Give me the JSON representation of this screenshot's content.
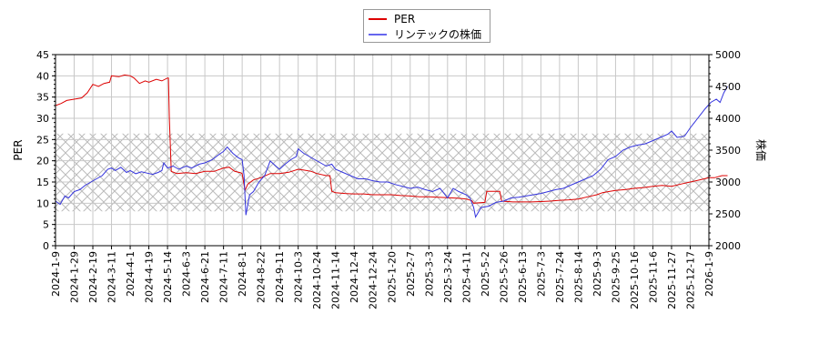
{
  "chart_data": {
    "type": "line",
    "title": "",
    "legend": {
      "position": "top-center",
      "entries": [
        {
          "label": "PER",
          "color": "#dd0000"
        },
        {
          "label": "リンテックの株価",
          "color": "#3333dd"
        }
      ]
    },
    "xlabel": "",
    "ylabel_left": "PER",
    "ylabel_right": "株価",
    "ylim_left": [
      0,
      45
    ],
    "ylim_right": [
      2000,
      5000
    ],
    "yticks_left": [
      0,
      5,
      10,
      15,
      20,
      25,
      30,
      35,
      40,
      45
    ],
    "yticks_right": [
      2000,
      2500,
      3000,
      3500,
      4000,
      4500,
      5000
    ],
    "grid": true,
    "hatched_band_per": [
      8.1,
      26.4
    ],
    "x_tick_labels": [
      "2024-1-9",
      "2024-1-29",
      "2024-2-19",
      "2024-3-11",
      "2024-4-1",
      "2024-4-19",
      "2024-5-14",
      "2024-6-3",
      "2024-6-21",
      "2024-7-11",
      "2024-8-1",
      "2024-8-22",
      "2024-9-11",
      "2024-10-3",
      "2024-10-24",
      "2024-11-14",
      "2024-12-4",
      "2024-12-24",
      "2025-1-20",
      "2025-2-7",
      "2025-3-3",
      "2025-3-24",
      "2025-4-11",
      "2025-5-2",
      "2025-5-26",
      "2025-6-13",
      "2025-7-3",
      "2025-7-24",
      "2025-8-14",
      "2025-9-3",
      "2025-9-25",
      "2025-10-16",
      "2025-11-6",
      "2025-11-27",
      "2025-12-17",
      "2026-1-9"
    ],
    "series": [
      {
        "name": "PER",
        "axis": "left",
        "color": "#dd0000",
        "points_tick_index_value": [
          [
            0,
            33
          ],
          [
            0.3,
            33.5
          ],
          [
            0.6,
            34.2
          ],
          [
            1,
            34.5
          ],
          [
            1.4,
            34.8
          ],
          [
            1.7,
            36
          ],
          [
            2,
            38
          ],
          [
            2.3,
            37.5
          ],
          [
            2.6,
            38.2
          ],
          [
            2.9,
            38.5
          ],
          [
            3,
            40
          ],
          [
            3.4,
            39.8
          ],
          [
            3.7,
            40.2
          ],
          [
            4,
            40
          ],
          [
            4.2,
            39.5
          ],
          [
            4.5,
            38.2
          ],
          [
            4.8,
            38.8
          ],
          [
            5,
            38.5
          ],
          [
            5.4,
            39.2
          ],
          [
            5.7,
            38.8
          ],
          [
            6,
            39.5
          ],
          [
            6.05,
            39.5
          ],
          [
            6.1,
            30
          ],
          [
            6.2,
            17.5
          ],
          [
            6.5,
            17
          ],
          [
            7,
            17.2
          ],
          [
            7.5,
            17
          ],
          [
            8,
            17.5
          ],
          [
            8.5,
            17.5
          ],
          [
            9,
            18.3
          ],
          [
            9.3,
            18.5
          ],
          [
            9.6,
            17.5
          ],
          [
            9.9,
            17.2
          ],
          [
            10,
            17
          ],
          [
            10.15,
            13
          ],
          [
            10.3,
            14.5
          ],
          [
            10.6,
            15.5
          ],
          [
            11,
            16
          ],
          [
            11.5,
            17
          ],
          [
            12,
            17
          ],
          [
            12.5,
            17.3
          ],
          [
            13,
            18
          ],
          [
            13.3,
            17.8
          ],
          [
            13.7,
            17.5
          ],
          [
            14,
            17
          ],
          [
            14.5,
            16.5
          ],
          [
            14.7,
            16.5
          ],
          [
            14.8,
            12.8
          ],
          [
            15,
            12.5
          ],
          [
            15.5,
            12.3
          ],
          [
            16,
            12.2
          ],
          [
            16.5,
            12.2
          ],
          [
            17,
            12
          ],
          [
            17.5,
            12
          ],
          [
            18,
            12
          ],
          [
            18.5,
            11.8
          ],
          [
            19,
            11.7
          ],
          [
            19.5,
            11.5
          ],
          [
            20,
            11.5
          ],
          [
            20.5,
            11.4
          ],
          [
            21,
            11.3
          ],
          [
            21.5,
            11.2
          ],
          [
            22,
            11
          ],
          [
            22.3,
            10.6
          ],
          [
            22.4,
            10
          ],
          [
            23,
            10.2
          ],
          [
            23.1,
            12.8
          ],
          [
            23.5,
            12.8
          ],
          [
            23.8,
            12.8
          ],
          [
            23.9,
            10.5
          ],
          [
            24.5,
            10.3
          ],
          [
            25,
            10.3
          ],
          [
            25.5,
            10.3
          ],
          [
            26,
            10.4
          ],
          [
            26.5,
            10.5
          ],
          [
            27,
            10.7
          ],
          [
            27.5,
            10.8
          ],
          [
            28,
            11
          ],
          [
            28.5,
            11.5
          ],
          [
            29,
            12
          ],
          [
            29.3,
            12.5
          ],
          [
            29.7,
            12.8
          ],
          [
            30,
            13
          ],
          [
            30.5,
            13.2
          ],
          [
            31,
            13.5
          ],
          [
            31.5,
            13.7
          ],
          [
            32,
            14
          ],
          [
            32.5,
            14.2
          ],
          [
            33,
            14
          ],
          [
            33.5,
            14.5
          ],
          [
            34,
            15
          ],
          [
            34.5,
            15.5
          ],
          [
            35,
            16
          ],
          [
            35.3,
            16
          ],
          [
            35.7,
            16.5
          ],
          [
            36,
            16.5
          ]
        ]
      },
      {
        "name": "リンテックの株価",
        "axis": "right",
        "color": "#3333dd",
        "points_tick_index_value": [
          [
            0,
            2700
          ],
          [
            0.25,
            2650
          ],
          [
            0.5,
            2780
          ],
          [
            0.7,
            2750
          ],
          [
            1,
            2850
          ],
          [
            1.3,
            2880
          ],
          [
            1.6,
            2950
          ],
          [
            1.9,
            3000
          ],
          [
            2.2,
            3050
          ],
          [
            2.5,
            3100
          ],
          [
            2.8,
            3200
          ],
          [
            3,
            3220
          ],
          [
            3.2,
            3180
          ],
          [
            3.5,
            3230
          ],
          [
            3.8,
            3150
          ],
          [
            4,
            3180
          ],
          [
            4.3,
            3130
          ],
          [
            4.6,
            3160
          ],
          [
            4.9,
            3140
          ],
          [
            5.2,
            3120
          ],
          [
            5.5,
            3150
          ],
          [
            5.7,
            3180
          ],
          [
            5.8,
            3300
          ],
          [
            6,
            3220
          ],
          [
            6.3,
            3250
          ],
          [
            6.6,
            3200
          ],
          [
            7,
            3250
          ],
          [
            7.3,
            3220
          ],
          [
            7.7,
            3280
          ],
          [
            8,
            3300
          ],
          [
            8.4,
            3350
          ],
          [
            8.7,
            3420
          ],
          [
            9,
            3480
          ],
          [
            9.2,
            3550
          ],
          [
            9.5,
            3450
          ],
          [
            9.8,
            3380
          ],
          [
            10,
            3350
          ],
          [
            10.1,
            3100
          ],
          [
            10.2,
            2480
          ],
          [
            10.4,
            2800
          ],
          [
            10.6,
            2850
          ],
          [
            10.9,
            3000
          ],
          [
            11.2,
            3100
          ],
          [
            11.5,
            3330
          ],
          [
            11.8,
            3250
          ],
          [
            12,
            3200
          ],
          [
            12.3,
            3280
          ],
          [
            12.6,
            3350
          ],
          [
            12.9,
            3400
          ],
          [
            13,
            3520
          ],
          [
            13.3,
            3450
          ],
          [
            13.6,
            3400
          ],
          [
            13.9,
            3350
          ],
          [
            14.2,
            3300
          ],
          [
            14.5,
            3250
          ],
          [
            14.8,
            3280
          ],
          [
            15,
            3200
          ],
          [
            15.4,
            3150
          ],
          [
            15.8,
            3100
          ],
          [
            16.2,
            3050
          ],
          [
            16.6,
            3050
          ],
          [
            17,
            3020
          ],
          [
            17.4,
            3000
          ],
          [
            17.8,
            3000
          ],
          [
            18.2,
            2960
          ],
          [
            18.6,
            2930
          ],
          [
            19,
            2900
          ],
          [
            19.4,
            2920
          ],
          [
            19.8,
            2880
          ],
          [
            20.2,
            2850
          ],
          [
            20.6,
            2900
          ],
          [
            21,
            2750
          ],
          [
            21.3,
            2900
          ],
          [
            21.6,
            2850
          ],
          [
            22,
            2800
          ],
          [
            22.2,
            2750
          ],
          [
            22.4,
            2600
          ],
          [
            22.5,
            2450
          ],
          [
            22.8,
            2600
          ],
          [
            23.2,
            2620
          ],
          [
            23.6,
            2680
          ],
          [
            24,
            2700
          ],
          [
            24.4,
            2750
          ],
          [
            24.8,
            2760
          ],
          [
            25.2,
            2780
          ],
          [
            25.6,
            2800
          ],
          [
            26,
            2820
          ],
          [
            26.4,
            2850
          ],
          [
            26.8,
            2880
          ],
          [
            27.2,
            2900
          ],
          [
            27.6,
            2950
          ],
          [
            28,
            3000
          ],
          [
            28.4,
            3050
          ],
          [
            28.8,
            3100
          ],
          [
            29.2,
            3200
          ],
          [
            29.6,
            3350
          ],
          [
            30,
            3400
          ],
          [
            30.4,
            3500
          ],
          [
            30.8,
            3550
          ],
          [
            31.2,
            3580
          ],
          [
            31.6,
            3600
          ],
          [
            32,
            3650
          ],
          [
            32.4,
            3700
          ],
          [
            32.8,
            3750
          ],
          [
            33,
            3800
          ],
          [
            33.3,
            3700
          ],
          [
            33.7,
            3720
          ],
          [
            34,
            3850
          ],
          [
            34.4,
            4000
          ],
          [
            34.8,
            4150
          ],
          [
            35.1,
            4250
          ],
          [
            35.4,
            4300
          ],
          [
            35.6,
            4250
          ],
          [
            35.8,
            4400
          ],
          [
            36,
            4500
          ]
        ]
      }
    ]
  }
}
